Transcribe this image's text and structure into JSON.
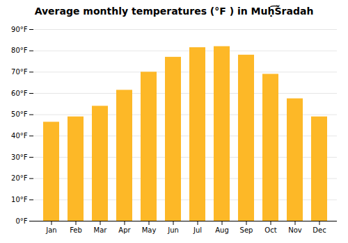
{
  "chart_data": {
    "type": "bar",
    "title": "Average monthly temperatures (°F ) in Muḥ͡Šradah",
    "categories": [
      "Jan",
      "Feb",
      "Mar",
      "Apr",
      "May",
      "Jun",
      "Jul",
      "Aug",
      "Sep",
      "Oct",
      "Nov",
      "Dec"
    ],
    "values": [
      46.5,
      49.0,
      54.0,
      61.5,
      70.0,
      77.0,
      81.5,
      82.0,
      78.0,
      69.0,
      57.5,
      49.0
    ],
    "color": "#FDB827",
    "ylim": [
      0,
      90
    ],
    "yticks": [
      {
        "value": 0,
        "label": "0°F"
      },
      {
        "value": 10,
        "label": "10°F"
      },
      {
        "value": 20,
        "label": "20°F"
      },
      {
        "value": 30,
        "label": "30°F"
      },
      {
        "value": 40,
        "label": "40°F"
      },
      {
        "value": 50,
        "label": "50°F"
      },
      {
        "value": 60,
        "label": "60°F"
      },
      {
        "value": 70,
        "label": "70°F"
      },
      {
        "value": 80,
        "label": "80°F"
      },
      {
        "value": 90,
        "label": "90°F"
      }
    ],
    "grid": true
  }
}
